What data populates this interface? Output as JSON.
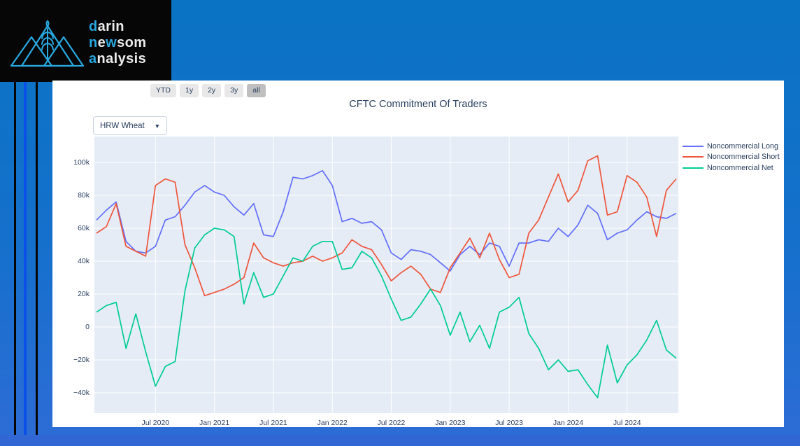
{
  "logo": {
    "accent_color": "#29a8e0",
    "lines": [
      {
        "segments": [
          {
            "text": "d",
            "accent": true
          },
          {
            "text": "arin",
            "accent": false
          }
        ]
      },
      {
        "segments": [
          {
            "text": "n",
            "accent": true
          },
          {
            "text": "e",
            "accent": false
          },
          {
            "text": "w",
            "accent": true
          },
          {
            "text": "som",
            "accent": false
          }
        ]
      },
      {
        "segments": [
          {
            "text": "a",
            "accent": true
          },
          {
            "text": "nalysis",
            "accent": false
          }
        ]
      }
    ]
  },
  "toolbar": {
    "range_buttons": [
      {
        "label": "YTD",
        "active": false
      },
      {
        "label": "1y",
        "active": false
      },
      {
        "label": "2y",
        "active": false
      },
      {
        "label": "3y",
        "active": false
      },
      {
        "label": "all",
        "active": true
      }
    ]
  },
  "chart": {
    "title": "CFTC Commitment Of Traders",
    "dropdown_value": "HRW Wheat",
    "dropdown_arrow": "▼"
  },
  "chart_data": {
    "type": "line",
    "title": "CFTC Commitment Of Traders",
    "unit": "contracts, thousands (k)",
    "plot_bg": "#e5ecf6",
    "grid": "on",
    "legend_position": "top-right-outside",
    "ylim": [
      -52,
      116
    ],
    "x": [
      "2020-01",
      "2020-02",
      "2020-03",
      "2020-04",
      "2020-05",
      "2020-06",
      "2020-07",
      "2020-08",
      "2020-09",
      "2020-10",
      "2020-11",
      "2020-12",
      "2021-01",
      "2021-02",
      "2021-03",
      "2021-04",
      "2021-05",
      "2021-06",
      "2021-07",
      "2021-08",
      "2021-09",
      "2021-10",
      "2021-11",
      "2021-12",
      "2022-01",
      "2022-02",
      "2022-03",
      "2022-04",
      "2022-05",
      "2022-06",
      "2022-07",
      "2022-08",
      "2022-09",
      "2022-10",
      "2022-11",
      "2022-12",
      "2023-01",
      "2023-02",
      "2023-03",
      "2023-04",
      "2023-05",
      "2023-06",
      "2023-07",
      "2023-08",
      "2023-09",
      "2023-10",
      "2023-11",
      "2023-12",
      "2024-01",
      "2024-02",
      "2024-03",
      "2024-04",
      "2024-05",
      "2024-06",
      "2024-07",
      "2024-08",
      "2024-09",
      "2024-10",
      "2024-11",
      "2024-12"
    ],
    "series": [
      {
        "name": "Noncommercial Long",
        "color": "#636efa",
        "values": [
          65,
          71,
          76,
          52,
          46,
          45,
          49,
          65,
          67,
          74,
          82,
          86,
          82,
          80,
          73,
          68,
          75,
          56,
          55,
          70,
          91,
          90,
          92,
          95,
          86,
          64,
          66,
          63,
          64,
          59,
          45,
          41,
          47,
          46,
          44,
          39,
          34,
          44,
          49,
          44,
          51,
          49,
          37,
          51,
          51,
          53,
          52,
          60,
          55,
          62,
          74,
          69,
          53,
          57,
          59,
          65,
          70,
          67,
          66,
          69
        ]
      },
      {
        "name": "Noncommercial Short",
        "color": "#ef553b",
        "values": [
          57,
          61,
          75,
          49,
          46,
          43,
          86,
          90,
          88,
          50,
          36,
          19,
          21,
          23,
          26,
          30,
          51,
          42,
          39,
          37,
          39,
          40,
          43,
          40,
          42,
          45,
          53,
          49,
          47,
          38,
          28,
          33,
          37,
          32,
          23,
          21,
          36,
          45,
          54,
          42,
          57,
          41,
          30,
          32,
          57,
          65,
          79,
          93,
          76,
          83,
          101,
          104,
          68,
          70,
          92,
          88,
          79,
          55,
          83,
          90
        ]
      },
      {
        "name": "Noncommercial Net",
        "color": "#00cc96",
        "values": [
          9,
          13,
          15,
          -13,
          8,
          -15,
          -36,
          -24,
          -21,
          22,
          48,
          56,
          60,
          59,
          55,
          14,
          33,
          18,
          20,
          31,
          42,
          40,
          49,
          52,
          52,
          35,
          36,
          46,
          42,
          31,
          17,
          4,
          6,
          14,
          23,
          13,
          -5,
          9,
          -9,
          1,
          -13,
          9,
          12,
          18,
          -4,
          -13,
          -26,
          -20,
          -27,
          -26,
          -35,
          -43,
          -11,
          -34,
          -23,
          -17,
          -8,
          4,
          -14,
          -19
        ]
      }
    ],
    "yticks": [
      {
        "v": 100,
        "label": "100k"
      },
      {
        "v": 80,
        "label": "80k"
      },
      {
        "v": 60,
        "label": "60k"
      },
      {
        "v": 40,
        "label": "40k"
      },
      {
        "v": 20,
        "label": "20k"
      },
      {
        "v": 0,
        "label": "0"
      },
      {
        "v": -20,
        "label": "−20k"
      },
      {
        "v": -40,
        "label": "−40k"
      }
    ],
    "xticks": [
      {
        "month": "2020-07",
        "label": "Jul 2020"
      },
      {
        "month": "2021-01",
        "label": "Jan 2021"
      },
      {
        "month": "2021-07",
        "label": "Jul 2021"
      },
      {
        "month": "2022-01",
        "label": "Jan 2022"
      },
      {
        "month": "2022-07",
        "label": "Jul 2022"
      },
      {
        "month": "2023-01",
        "label": "Jan 2023"
      },
      {
        "month": "2023-07",
        "label": "Jul 2023"
      },
      {
        "month": "2024-01",
        "label": "Jan 2024"
      },
      {
        "month": "2024-07",
        "label": "Jul 2024"
      }
    ]
  }
}
